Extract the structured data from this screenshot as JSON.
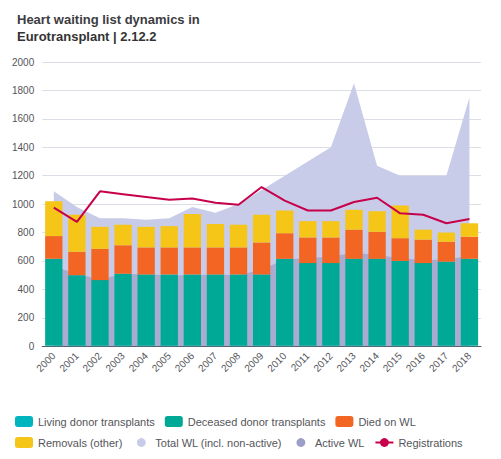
{
  "chart_data": {
    "type": "bar",
    "title": "Heart waiting list dynamics in",
    "subtitle": "Eurotransplant | 2.12.2",
    "categories": [
      "2000",
      "2001",
      "2002",
      "2003",
      "2004",
      "2005",
      "2006",
      "2007",
      "2008",
      "2009",
      "2010",
      "2011",
      "2012",
      "2013",
      "2014",
      "2015",
      "2016",
      "2017",
      "2018"
    ],
    "series": [
      {
        "name": "Living donor transplants",
        "type": "bar",
        "color": "#00b5bd",
        "values": [
          5,
          5,
          5,
          5,
          5,
          5,
          5,
          5,
          5,
          5,
          5,
          5,
          5,
          5,
          5,
          5,
          5,
          5,
          5
        ]
      },
      {
        "name": "Deceased donor transplants",
        "type": "bar",
        "color": "#00a896",
        "values": [
          610,
          495,
          460,
          505,
          500,
          500,
          500,
          500,
          500,
          500,
          610,
          580,
          580,
          610,
          610,
          595,
          580,
          590,
          610
        ]
      },
      {
        "name": "Died on WL",
        "type": "bar",
        "color": "#f26522",
        "values": [
          160,
          165,
          220,
          200,
          190,
          190,
          190,
          190,
          190,
          225,
          180,
          180,
          180,
          205,
          190,
          160,
          165,
          140,
          155
        ]
      },
      {
        "name": "Removals (other)",
        "type": "bar",
        "color": "#f5c518",
        "values": [
          245,
          260,
          155,
          145,
          145,
          150,
          235,
          165,
          160,
          195,
          160,
          115,
          115,
          140,
          145,
          230,
          70,
          65,
          95
        ]
      },
      {
        "name": "Total WL (incl. non-active)",
        "type": "area",
        "color": "#c8cce8",
        "values": [
          1090,
          980,
          900,
          900,
          890,
          900,
          980,
          940,
          1000,
          1100,
          1200,
          1300,
          1400,
          1850,
          1270,
          1200,
          1200,
          1200,
          1750
        ]
      },
      {
        "name": "Active WL",
        "type": "area",
        "color": "#9b9ec8",
        "values": [
          560,
          510,
          470,
          510,
          505,
          500,
          500,
          505,
          500,
          540,
          610,
          620,
          630,
          660,
          640,
          620,
          605,
          610,
          635
        ]
      },
      {
        "name": "Registrations",
        "type": "line",
        "color": "#c8004b",
        "values": [
          975,
          875,
          1090,
          1070,
          1050,
          1030,
          1040,
          1010,
          995,
          1120,
          1025,
          955,
          955,
          1015,
          1045,
          935,
          925,
          865,
          895
        ]
      }
    ],
    "ylim": [
      0,
      2000
    ],
    "yticks": [
      0,
      200,
      400,
      600,
      800,
      1000,
      1200,
      1400,
      1600,
      1800,
      2000
    ],
    "grid": true,
    "stacked": true,
    "legend": "bottom"
  }
}
